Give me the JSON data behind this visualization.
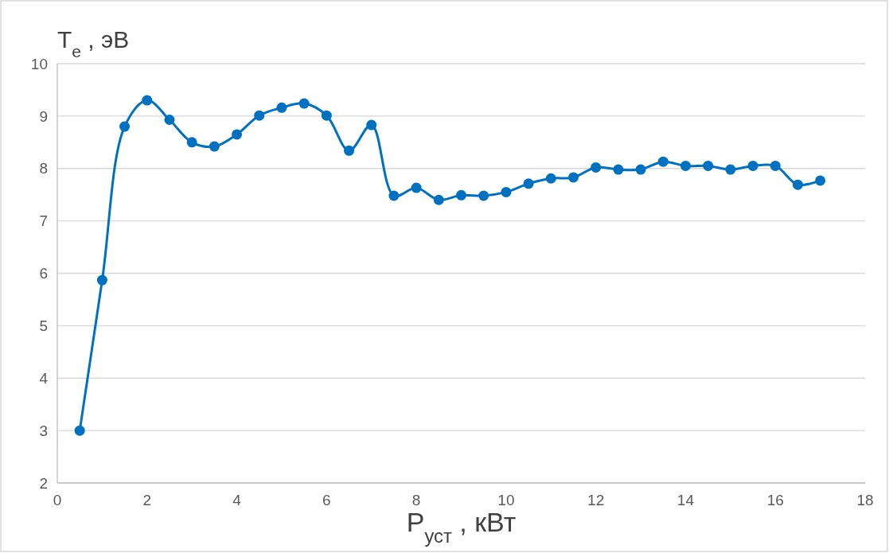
{
  "chart_data": {
    "type": "line",
    "xlabel": "P$_{уст}$ , кВт",
    "ylabel": "T$_{e}$ , эВ",
    "x": [
      0.5,
      1,
      1.5,
      2,
      2.5,
      3,
      3.5,
      4,
      4.5,
      5,
      5.5,
      6,
      6.5,
      7,
      7.5,
      8,
      8.5,
      9,
      9.5,
      10,
      10.5,
      11,
      11.5,
      12,
      12.5,
      13,
      13.5,
      14,
      14.5,
      15,
      15.5,
      16,
      16.5,
      17
    ],
    "series": [
      {
        "color": "#0070c0",
        "values": [
          3.0,
          5.87,
          8.8,
          9.3,
          8.93,
          8.5,
          8.42,
          8.65,
          9.01,
          9.16,
          9.24,
          9.01,
          8.34,
          8.83,
          7.48,
          7.63,
          7.4,
          7.49,
          7.48,
          7.55,
          7.71,
          7.81,
          7.83,
          8.02,
          7.98,
          7.98,
          8.13,
          8.05,
          8.05,
          7.98,
          8.05,
          8.05,
          7.69,
          7.77
        ]
      }
    ],
    "xlim": [
      0,
      18
    ],
    "xticks": [
      0,
      2,
      4,
      6,
      8,
      10,
      12,
      14,
      16,
      18
    ],
    "ylim": [
      2,
      10
    ],
    "yticks": [
      2,
      3,
      4,
      5,
      6,
      7,
      8,
      9,
      10
    ],
    "grid": "y",
    "marker": "circle",
    "line_style": "solid"
  }
}
